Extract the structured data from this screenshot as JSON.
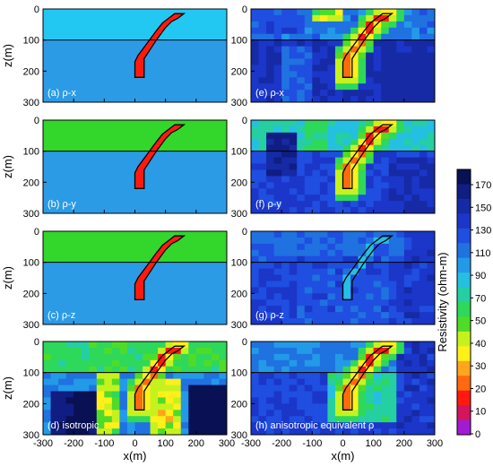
{
  "figure": {
    "y_axis_label": "z(m)",
    "x_axis_label": "x(m)",
    "colorbar_label": "Resistivity (ohm-m)",
    "colorbar_ticks": [
      0,
      10,
      20,
      30,
      40,
      50,
      70,
      90,
      110,
      130,
      150,
      170
    ],
    "colors": {
      "bg_true": "#2b9be6",
      "layer_x": "#23c8f2",
      "layer_yz": "#33d62b",
      "target": "#ff1a0f",
      "outline": "#000000",
      "colorbar": [
        "#a21bd3",
        "#d3155c",
        "#ff1a0f",
        "#ff6a10",
        "#ffa51e",
        "#fff01a",
        "#c5f21e",
        "#4fdc28",
        "#2ed85a",
        "#25cfa2",
        "#25bfe2",
        "#239ae8",
        "#1f72e0",
        "#1f4ee0",
        "#1b36c8",
        "#162aa6",
        "#101d82",
        "#0a1054"
      ]
    }
  },
  "chart_data": [
    {
      "type": "heatmap",
      "panel_label": "(a) ρ-x",
      "xlim": [
        -300,
        300
      ],
      "ylim": [
        300,
        0
      ],
      "interface_depth": 100,
      "background_resistivity": 100,
      "top_layer_resistivity": 90,
      "target_resistivity": 10,
      "target_outline": [
        [
          0,
          220
        ],
        [
          30,
          220
        ],
        [
          30,
          160
        ],
        [
          70,
          100
        ],
        [
          100,
          60
        ],
        [
          120,
          40
        ],
        [
          140,
          30
        ],
        [
          160,
          15
        ],
        [
          130,
          15
        ],
        [
          110,
          30
        ],
        [
          90,
          45
        ],
        [
          70,
          70
        ],
        [
          40,
          110
        ],
        [
          10,
          150
        ],
        [
          0,
          170
        ]
      ]
    },
    {
      "type": "heatmap",
      "panel_label": "(b) ρ-y",
      "xlim": [
        -300,
        300
      ],
      "ylim": [
        300,
        0
      ],
      "interface_depth": 100,
      "background_resistivity": 100,
      "top_layer_resistivity": 40,
      "target_resistivity": 10
    },
    {
      "type": "heatmap",
      "panel_label": "(c) ρ-z",
      "xlim": [
        -300,
        300
      ],
      "ylim": [
        300,
        0
      ],
      "interface_depth": 100,
      "background_resistivity": 100,
      "top_layer_resistivity": 40,
      "target_resistivity": 10
    },
    {
      "type": "heatmap",
      "panel_label": "(d) isotropic",
      "xlim": [
        -300,
        300
      ],
      "ylim": [
        300,
        0
      ],
      "interface_depth": 100,
      "inverted": true
    },
    {
      "type": "heatmap",
      "panel_label": "(e) ρ-x",
      "xlim": [
        -300,
        300
      ],
      "ylim": [
        300,
        0
      ],
      "interface_depth": 100,
      "inverted": true
    },
    {
      "type": "heatmap",
      "panel_label": "(f) ρ-y",
      "xlim": [
        -300,
        300
      ],
      "ylim": [
        300,
        0
      ],
      "interface_depth": 100,
      "inverted": true
    },
    {
      "type": "heatmap",
      "panel_label": "(g) ρ-z",
      "xlim": [
        -300,
        300
      ],
      "ylim": [
        300,
        0
      ],
      "interface_depth": 100,
      "inverted": true
    },
    {
      "type": "heatmap",
      "panel_label": "(h) anisotropic equivalent ρ",
      "xlim": [
        -300,
        300
      ],
      "ylim": [
        300,
        0
      ],
      "interface_depth": 100,
      "inverted": true
    }
  ],
  "axes": {
    "x_ticks": [
      -300,
      -200,
      -100,
      0,
      100,
      200,
      300
    ],
    "y_ticks": [
      0,
      100,
      200,
      300
    ]
  }
}
